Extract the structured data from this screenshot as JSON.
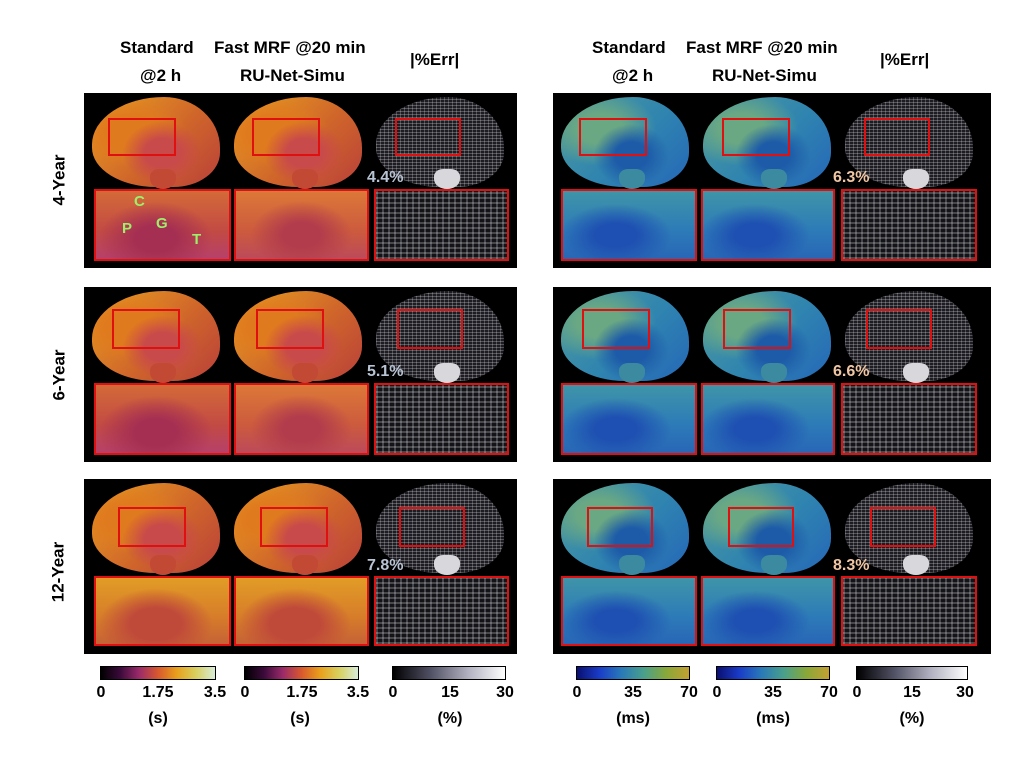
{
  "left_headers": {
    "col1_line1": "Standard",
    "col1_line2": "@2 h",
    "col2_line1": "Fast MRF @20 min",
    "col2_line2": "RU-Net-Simu",
    "col3": "|%Err|"
  },
  "right_headers": {
    "col1_line1": "Standard",
    "col1_line2": "@2 h",
    "col2_line1": "Fast MRF @20 min",
    "col2_line2": "RU-Net-Simu",
    "col3": "|%Err|"
  },
  "rows": [
    {
      "label": "4-Year",
      "t1_err": "4.4%",
      "t2_err": "6.3%"
    },
    {
      "label": "6-Year",
      "t1_err": "5.1%",
      "t2_err": "6.6%"
    },
    {
      "label": "12-Year",
      "t1_err": "7.8%",
      "t2_err": "8.3%"
    }
  ],
  "roi_labels": {
    "c": "C",
    "p": "P",
    "g": "G",
    "t": "T"
  },
  "colorbars": [
    {
      "map": "T1",
      "ticks": [
        "0",
        "1.75",
        "3.5"
      ],
      "unit": "(s)"
    },
    {
      "map": "T1",
      "ticks": [
        "0",
        "1.75",
        "3.5"
      ],
      "unit": "(s)"
    },
    {
      "map": "error",
      "ticks": [
        "0",
        "15",
        "30"
      ],
      "unit": "(%)"
    },
    {
      "map": "T2",
      "ticks": [
        "0",
        "35",
        "70"
      ],
      "unit": "(ms)"
    },
    {
      "map": "T2",
      "ticks": [
        "0",
        "35",
        "70"
      ],
      "unit": "(ms)"
    },
    {
      "map": "error",
      "ticks": [
        "0",
        "15",
        "30"
      ],
      "unit": "(%)"
    }
  ],
  "colors": {
    "box": "#e01010",
    "t1_pct": "#b8c4d4",
    "t2_pct": "#f0c6a4",
    "roi": "#9df06a"
  }
}
